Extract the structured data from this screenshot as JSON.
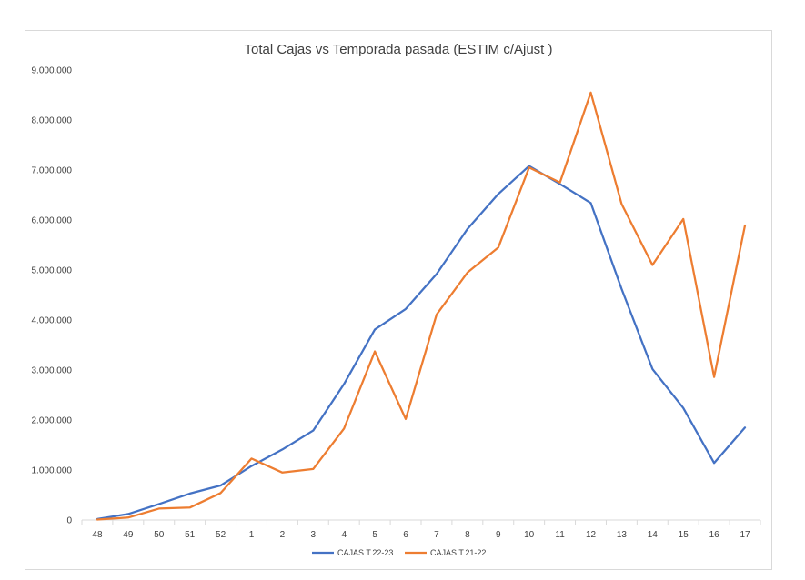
{
  "chart_data": {
    "type": "line",
    "title": "Total Cajas vs Temporada pasada (ESTIM c/Ajust )",
    "xlabel": "",
    "ylabel": "",
    "categories": [
      "48",
      "49",
      "50",
      "51",
      "52",
      "1",
      "2",
      "3",
      "4",
      "5",
      "6",
      "7",
      "8",
      "9",
      "10",
      "11",
      "12",
      "13",
      "14",
      "15",
      "16",
      "17"
    ],
    "ylim": [
      0,
      9000000
    ],
    "yticks": [
      0,
      1000000,
      2000000,
      3000000,
      4000000,
      5000000,
      6000000,
      7000000,
      8000000,
      9000000
    ],
    "ytick_labels": [
      "0",
      "1.000.000",
      "2.000.000",
      "3.000.000",
      "4.000.000",
      "5.000.000",
      "6.000.000",
      "7.000.000",
      "8.000.000",
      "9.000.000"
    ],
    "grid": false,
    "legend_position": "bottom",
    "series": [
      {
        "name": "CAJAS T.22-23",
        "color": "#4472c4",
        "values": [
          20000,
          120000,
          320000,
          530000,
          690000,
          1080000,
          1410000,
          1790000,
          2720000,
          3810000,
          4220000,
          4920000,
          5820000,
          6520000,
          7080000,
          6720000,
          6340000,
          4620000,
          3020000,
          2240000,
          1140000,
          1850000
        ]
      },
      {
        "name": "CAJAS T.21-22",
        "color": "#ed7d31",
        "values": [
          10000,
          50000,
          230000,
          250000,
          540000,
          1230000,
          950000,
          1020000,
          1830000,
          3370000,
          2020000,
          4110000,
          4950000,
          5450000,
          7050000,
          6750000,
          8550000,
          6320000,
          5100000,
          6020000,
          2860000,
          5890000
        ]
      }
    ]
  }
}
